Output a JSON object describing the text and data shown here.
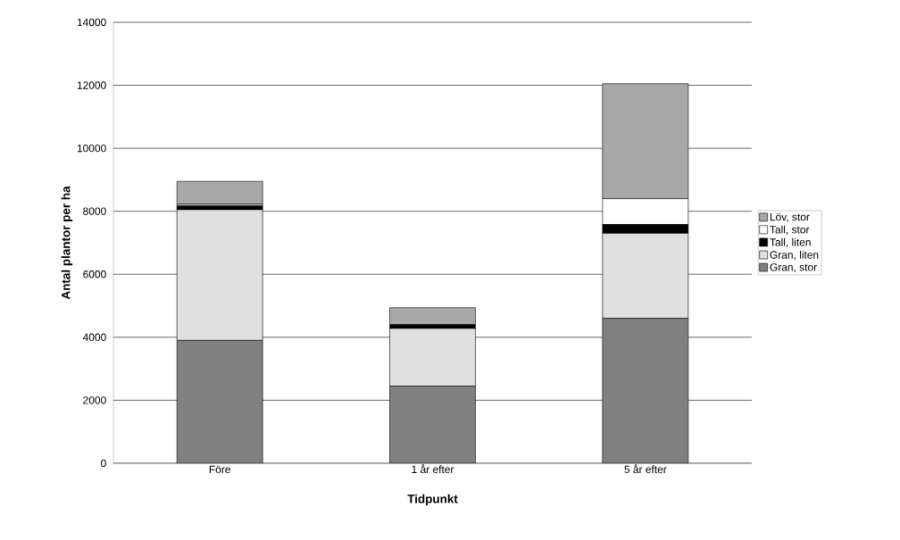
{
  "chart_data": {
    "type": "bar",
    "stacked": true,
    "xlabel": "Tidpunkt",
    "ylabel": "Antal plantor per ha",
    "categories": [
      "Före",
      "1 år efter",
      "5 år efter"
    ],
    "series": [
      {
        "name": "Gran, stor",
        "color": "#808080",
        "values": [
          3900,
          2450,
          4600
        ]
      },
      {
        "name": "Gran, liten",
        "color": "#e0e0e0",
        "values": [
          4150,
          1830,
          2700
        ]
      },
      {
        "name": "Tall, liten",
        "color": "#000000",
        "values": [
          120,
          120,
          280
        ]
      },
      {
        "name": "Tall, stor",
        "color": "#ffffff",
        "values": [
          50,
          null,
          820
        ]
      },
      {
        "name": "Löv, stor",
        "color": "#a8a8a8",
        "values": [
          730,
          540,
          3650
        ]
      }
    ],
    "ylim": [
      0,
      14000
    ],
    "yticks": [
      0,
      2000,
      4000,
      6000,
      8000,
      10000,
      12000,
      14000
    ],
    "grid": "y",
    "legend": "right"
  }
}
